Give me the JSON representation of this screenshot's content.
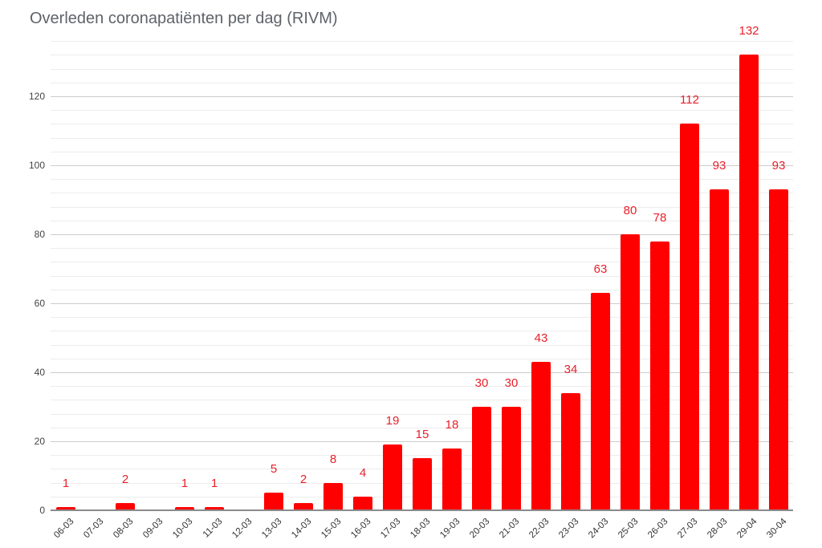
{
  "title": "Overleden coronapatiënten per dag (RIVM)",
  "colors": {
    "bar": "#ff0000",
    "value_label": "#e8202a",
    "title": "#5f6368"
  },
  "y_ticks": [
    "0",
    "20",
    "40",
    "60",
    "80",
    "100",
    "120"
  ],
  "chart_data": {
    "type": "bar",
    "title": "Overleden coronapatiënten per dag (RIVM)",
    "xlabel": "",
    "ylabel": "",
    "ylim": [
      0,
      136
    ],
    "y_ticks": [
      0,
      20,
      40,
      60,
      80,
      100,
      120
    ],
    "grid": true,
    "legend": "none",
    "categories": [
      "06-03",
      "07-03",
      "08-03",
      "09-03",
      "10-03",
      "11-03",
      "12-03",
      "13-03",
      "14-03",
      "15-03",
      "16-03",
      "17-03",
      "18-03",
      "19-03",
      "20-03",
      "21-03",
      "22-03",
      "23-03",
      "24-03",
      "25-03",
      "26-03",
      "27-03",
      "28-03",
      "29-04",
      "30-04"
    ],
    "values": [
      1,
      0,
      2,
      0,
      1,
      1,
      0,
      5,
      2,
      8,
      4,
      19,
      15,
      18,
      30,
      30,
      43,
      34,
      63,
      80,
      78,
      112,
      93,
      132,
      93
    ],
    "value_labels": [
      "1",
      "",
      "2",
      "",
      "1",
      "1",
      "",
      "5",
      "2",
      "8",
      "4",
      "19",
      "15",
      "18",
      "30",
      "30",
      "43",
      "34",
      "63",
      "80",
      "78",
      "112",
      "93",
      "132",
      "93"
    ]
  }
}
